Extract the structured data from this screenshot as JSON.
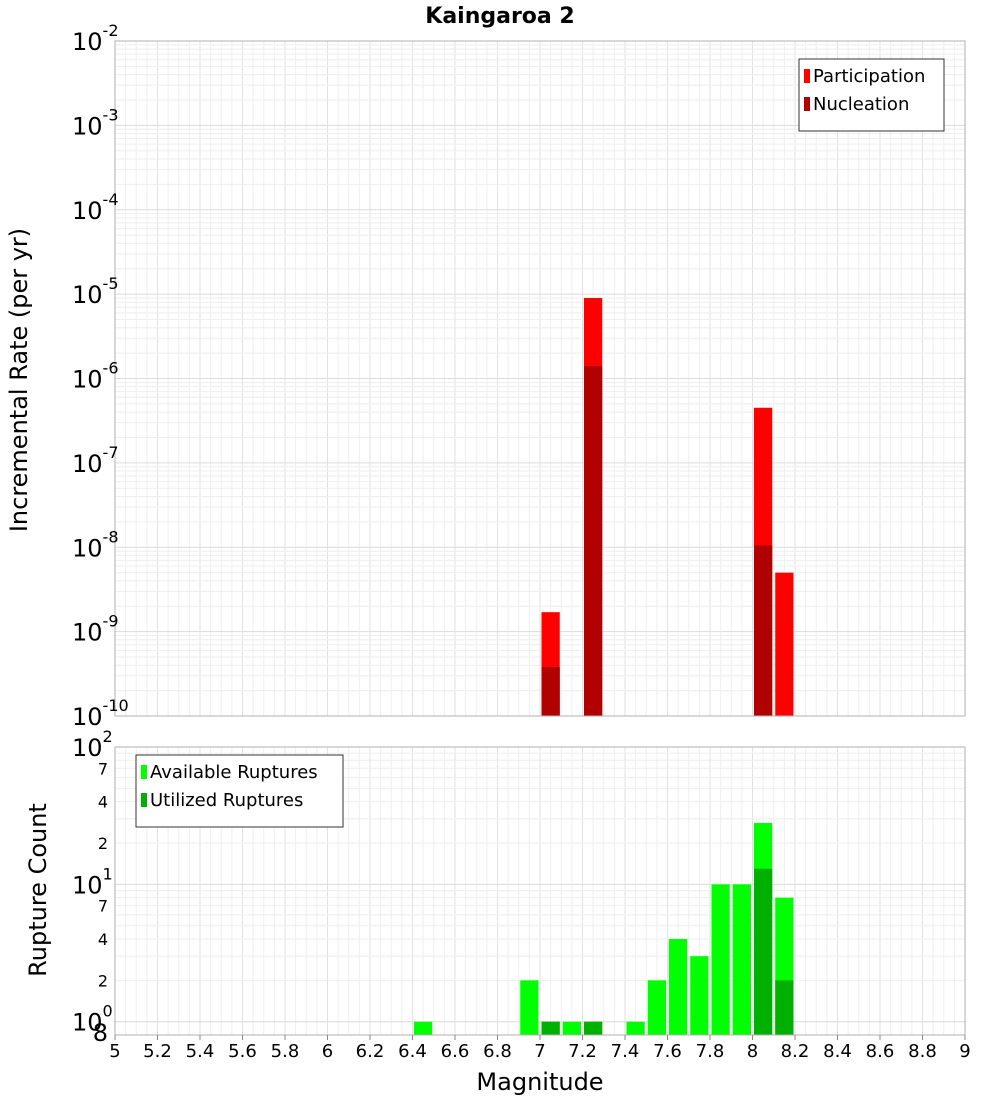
{
  "chart_data": [
    {
      "type": "bar",
      "title": "Kaingaroa 2",
      "xlabel": "Magnitude",
      "ylabel": "Incremental Rate (per yr)",
      "yscale": "log",
      "ylim": [
        1e-10,
        0.01
      ],
      "xlim": [
        5,
        9
      ],
      "grid": true,
      "legend_position": "top-right",
      "x_ticks": [
        "5",
        "5.2",
        "5.4",
        "5.6",
        "5.8",
        "6",
        "6.2",
        "6.4",
        "6.6",
        "6.8",
        "7",
        "7.2",
        "7.4",
        "7.6",
        "7.8",
        "8",
        "8.2",
        "8.4",
        "8.6",
        "8.8",
        "9"
      ],
      "y_ticks": [
        {
          "base": "10",
          "exp": "-2"
        },
        {
          "base": "10",
          "exp": "-3"
        },
        {
          "base": "10",
          "exp": "-4"
        },
        {
          "base": "10",
          "exp": "-5"
        },
        {
          "base": "10",
          "exp": "-6"
        },
        {
          "base": "10",
          "exp": "-7"
        },
        {
          "base": "10",
          "exp": "-8"
        },
        {
          "base": "10",
          "exp": "-9"
        },
        {
          "base": "10",
          "exp": "-10"
        }
      ],
      "bin_width": 0.1,
      "series": [
        {
          "name": "Participation",
          "color": "#ff0000",
          "x": [
            7.05,
            7.25,
            8.05,
            8.15
          ],
          "values": [
            1.7e-09,
            9e-06,
            4.5e-07,
            5e-09
          ]
        },
        {
          "name": "Nucleation",
          "color": "#b00000",
          "x": [
            7.05,
            7.25,
            8.05
          ],
          "values": [
            3.8e-10,
            1.4e-06,
            1.05e-08
          ]
        }
      ]
    },
    {
      "type": "bar",
      "title": "",
      "xlabel": "Magnitude",
      "ylabel": "Rupture Count",
      "yscale": "log",
      "ylim": [
        0.8,
        100
      ],
      "xlim": [
        5,
        9
      ],
      "grid": true,
      "legend_position": "top-left",
      "y_major_ticks": [
        {
          "base": "10",
          "exp": "2"
        },
        {
          "base": "10",
          "exp": "1"
        },
        {
          "base": "10",
          "exp": "0"
        }
      ],
      "y_minor_ticks": [
        "7",
        "4",
        "2",
        "7",
        "4",
        "2",
        "8"
      ],
      "bin_width": 0.1,
      "series": [
        {
          "name": "Available Ruptures",
          "color": "#00ff00",
          "x": [
            6.45,
            6.95,
            7.05,
            7.15,
            7.25,
            7.45,
            7.55,
            7.65,
            7.75,
            7.85,
            7.95,
            8.05,
            8.15
          ],
          "values": [
            1,
            2,
            1,
            1,
            1,
            1,
            2,
            4,
            3,
            10,
            10,
            28,
            8
          ]
        },
        {
          "name": "Utilized Ruptures",
          "color": "#00b000",
          "x": [
            7.05,
            7.25,
            8.05,
            8.15
          ],
          "values": [
            1,
            1,
            13,
            2
          ]
        }
      ]
    }
  ]
}
